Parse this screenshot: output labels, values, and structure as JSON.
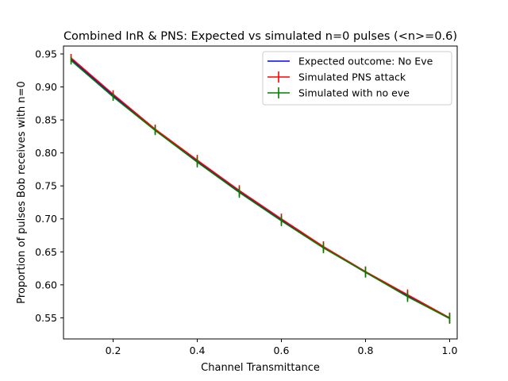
{
  "chart_data": {
    "type": "line",
    "title": "Combined InR & PNS: Expected vs simulated n=0 pulses (<n>=0.6)",
    "xlabel": "Channel Transmittance",
    "ylabel": "Proportion of pulses Bob receives with n=0",
    "xlim": [
      0.082,
      1.018
    ],
    "ylim": [
      0.518,
      0.962
    ],
    "xticks": [
      0.2,
      0.4,
      0.6,
      0.8,
      1.0
    ],
    "xtick_labels": [
      "0.2",
      "0.4",
      "0.6",
      "0.8",
      "1.0"
    ],
    "yticks": [
      0.55,
      0.6,
      0.65,
      0.7,
      0.75,
      0.8,
      0.85,
      0.9,
      0.95
    ],
    "ytick_labels": [
      "0.55",
      "0.60",
      "0.65",
      "0.70",
      "0.75",
      "0.80",
      "0.85",
      "0.90",
      "0.95"
    ],
    "grid": false,
    "legend_position": "top-right",
    "x": [
      0.1,
      0.2,
      0.3,
      0.4,
      0.5,
      0.6,
      0.7,
      0.8,
      0.9,
      1.0
    ],
    "series": [
      {
        "name": "Expected outcome: No Eve",
        "color": "#0000ff",
        "values": [
          0.942,
          0.887,
          0.835,
          0.787,
          0.741,
          0.698,
          0.657,
          0.619,
          0.583,
          0.549
        ]
      },
      {
        "name": "Simulated PNS attack",
        "color": "#ff0000",
        "errorbars": true,
        "values": [
          0.944,
          0.889,
          0.836,
          0.789,
          0.743,
          0.7,
          0.658,
          0.62,
          0.585,
          0.55
        ],
        "errors": [
          0.006,
          0.006,
          0.007,
          0.008,
          0.008,
          0.008,
          0.008,
          0.008,
          0.008,
          0.008
        ]
      },
      {
        "name": "Simulated with no eve",
        "color": "#008000",
        "errorbars": true,
        "values": [
          0.94,
          0.885,
          0.834,
          0.786,
          0.74,
          0.697,
          0.656,
          0.619,
          0.582,
          0.549
        ],
        "errors": [
          0.006,
          0.006,
          0.007,
          0.008,
          0.008,
          0.008,
          0.008,
          0.008,
          0.008,
          0.008
        ]
      }
    ]
  }
}
